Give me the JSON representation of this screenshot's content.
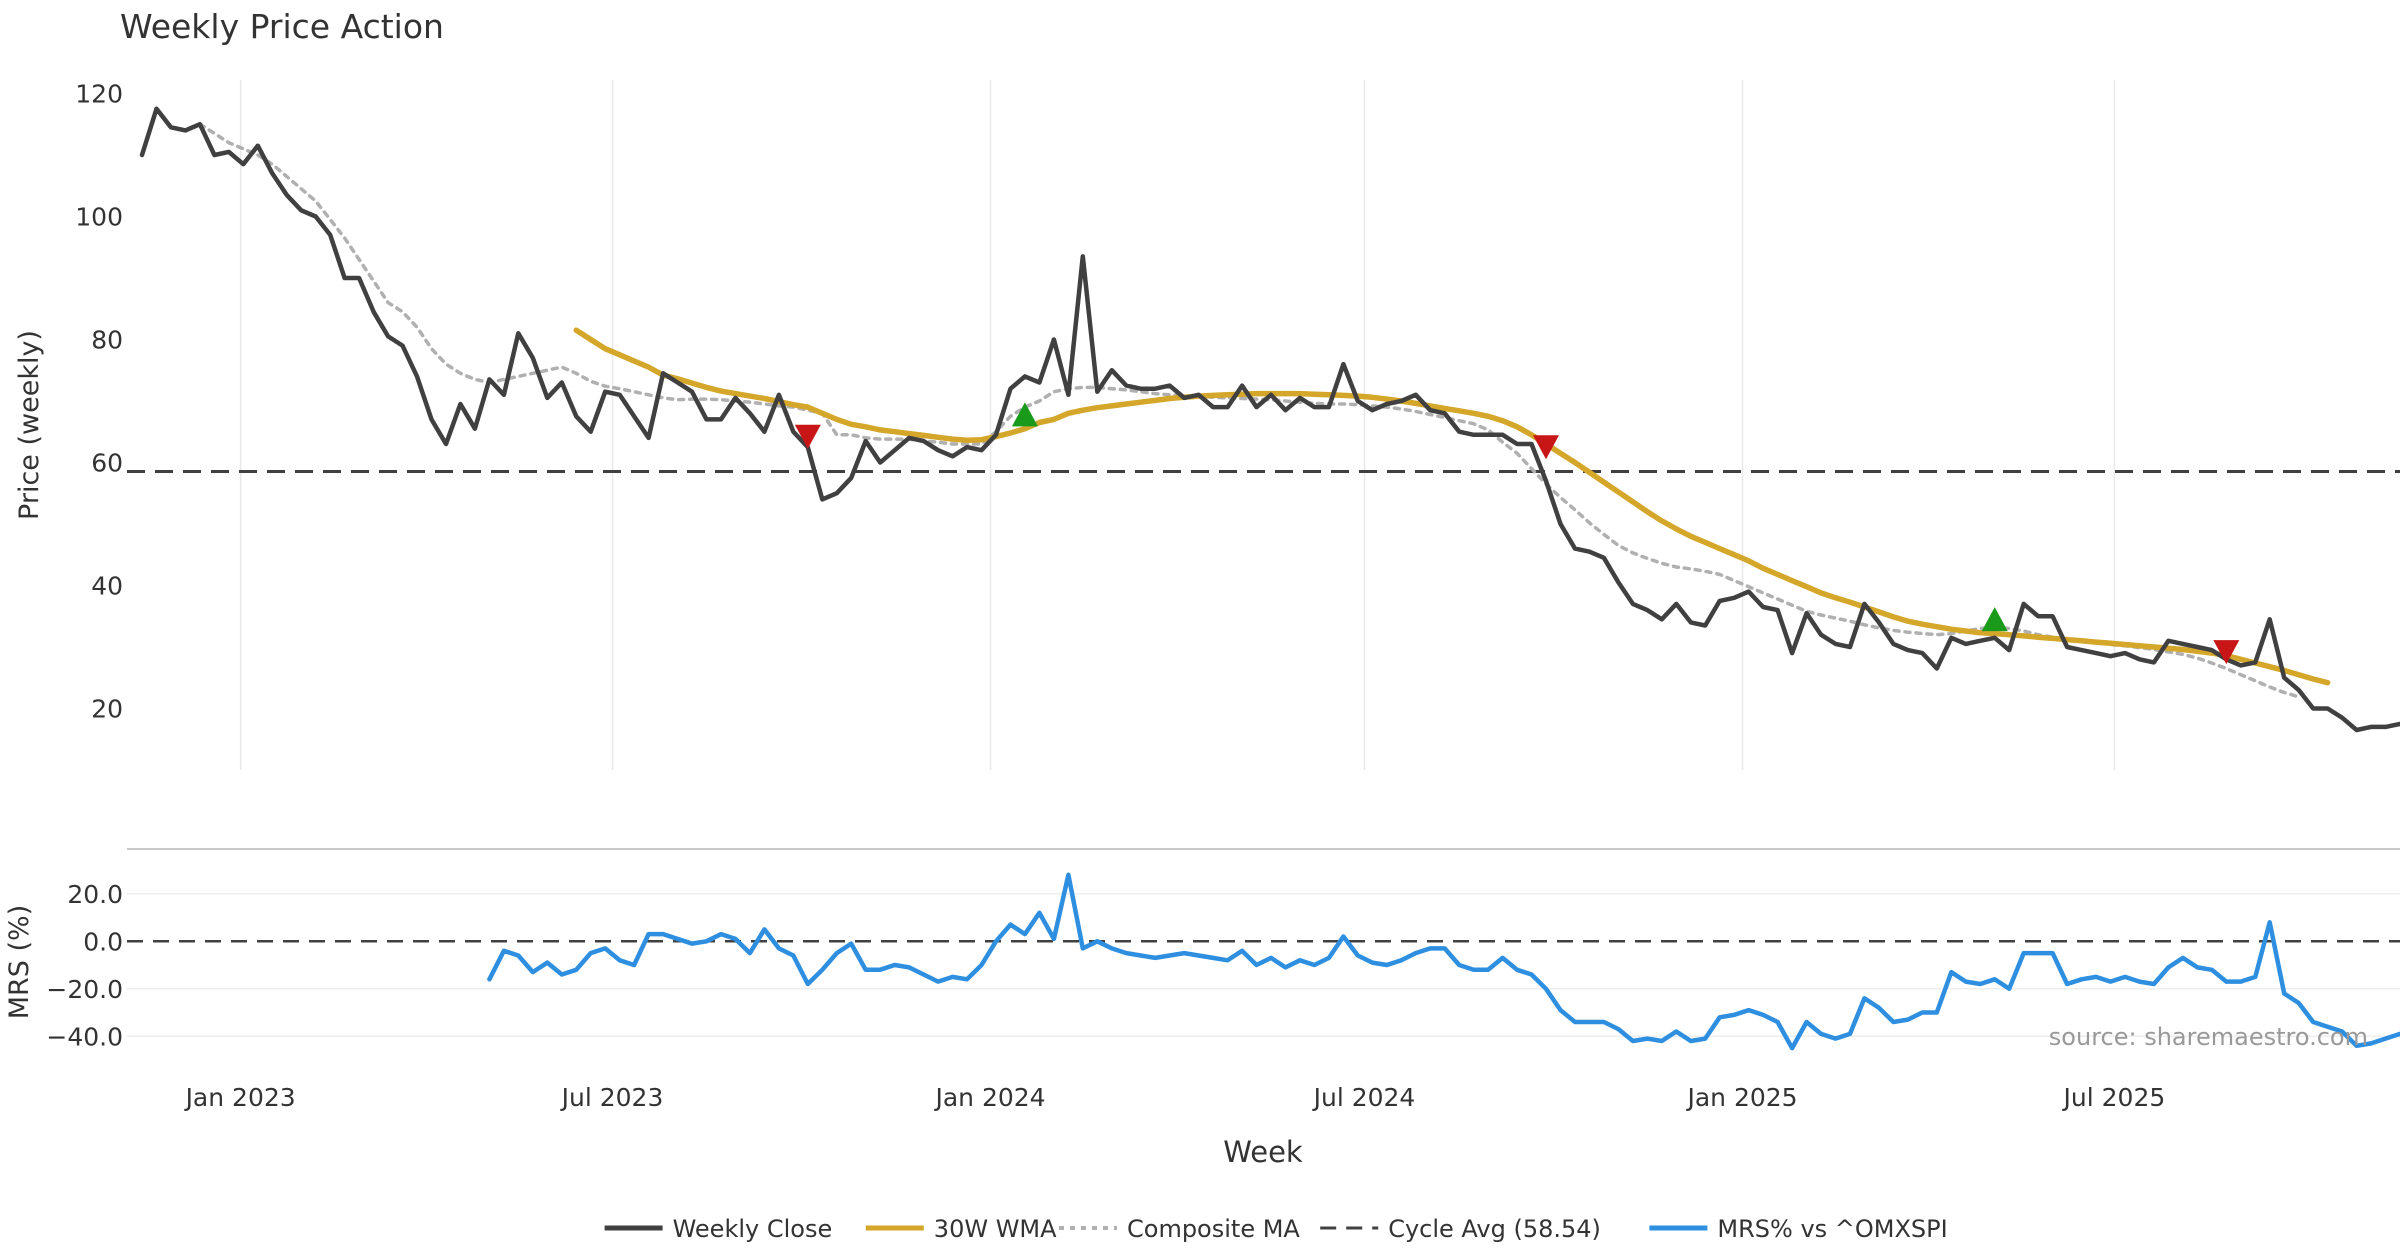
{
  "chart_data": [
    {
      "panel": "price",
      "type": "line",
      "title": "Weekly Price Action",
      "ylabel": "Price (weekly)",
      "xlabel": "Week",
      "ylim": [
        10,
        123
      ],
      "yticks": [
        20,
        40,
        60,
        80,
        100,
        120
      ],
      "ytick_labels": [
        "20",
        "40",
        "60",
        "80",
        "100",
        "120"
      ],
      "x_start": "2022-11-14",
      "x_end": "2025-11-17",
      "xticks": [
        {
          "label": "Jan 2023",
          "date": "2023-01-01"
        },
        {
          "label": "Jul 2023",
          "date": "2023-07-01"
        },
        {
          "label": "Jan 2024",
          "date": "2024-01-01"
        },
        {
          "label": "Jul 2024",
          "date": "2024-07-01"
        },
        {
          "label": "Jan 2025",
          "date": "2025-01-01"
        },
        {
          "label": "Jul 2025",
          "date": "2025-07-01"
        }
      ],
      "grid": "vertical",
      "reference_line": {
        "name": "Cycle Avg (58.54)",
        "value": 58.54
      },
      "series": [
        {
          "name": "Weekly Close",
          "color": "#404040",
          "style": "solid",
          "start_index": 0,
          "values": [
            110,
            117.5,
            114.5,
            114,
            115,
            110,
            110.5,
            108.5,
            111.5,
            107,
            103.5,
            101,
            100,
            97,
            90,
            90,
            84.5,
            80.5,
            79,
            74,
            67,
            63,
            69.5,
            65.5,
            73.5,
            71,
            81,
            77,
            70.5,
            73,
            67.5,
            65,
            71.5,
            71,
            67.5,
            64,
            74.5,
            73,
            71.5,
            67,
            67,
            70.5,
            68,
            65,
            71,
            65,
            62.5,
            54,
            55,
            57.5,
            63.5,
            60,
            62,
            64,
            63.5,
            62,
            61,
            62.5,
            62,
            64.5,
            72,
            74,
            73,
            80,
            71,
            93.5,
            71.5,
            75,
            72.5,
            72,
            72,
            72.5,
            70.5,
            71,
            69,
            69,
            72.5,
            69,
            71,
            68.5,
            70.5,
            69,
            69,
            76,
            70,
            68.5,
            69.5,
            70,
            71,
            68.5,
            68,
            65,
            64.5,
            64.5,
            64.5,
            63,
            63,
            57,
            50,
            46,
            45.5,
            44.5,
            40.5,
            37,
            36,
            34.5,
            37,
            34,
            33.5,
            37.5,
            38,
            39,
            36.5,
            36,
            29,
            35.5,
            32,
            30.5,
            30,
            37,
            34,
            30.5,
            29.5,
            29,
            26.5,
            31.5,
            30.5,
            31,
            31.5,
            29.5,
            37,
            35,
            35,
            30,
            29.5,
            29,
            28.5,
            29,
            28,
            27.5,
            31,
            30.5,
            30,
            29.5,
            28,
            27,
            27.5,
            34.5,
            25,
            23,
            20,
            20,
            18.5,
            16.5,
            17,
            17,
            17.5
          ]
        },
        {
          "name": "30W WMA",
          "color": "#D4A62A",
          "style": "solid",
          "start_index": 30,
          "values": [
            81.5,
            80,
            78.5,
            77.5,
            76.5,
            75.5,
            74.2,
            73.6,
            72.9,
            72.2,
            71.6,
            71.2,
            70.8,
            70.4,
            69.9,
            69.4,
            69,
            68,
            67,
            66.2,
            65.8,
            65.3,
            65,
            64.7,
            64.4,
            64.1,
            63.8,
            63.6,
            63.7,
            64.2,
            64.8,
            65.5,
            66.5,
            67,
            68,
            68.5,
            68.9,
            69.2,
            69.5,
            69.8,
            70.1,
            70.4,
            70.6,
            70.8,
            70.9,
            71,
            71.1,
            71.2,
            71.2,
            71.2,
            71.2,
            71.1,
            71,
            70.9,
            70.8,
            70.6,
            70.3,
            70,
            69.6,
            69.2,
            68.8,
            68.4,
            68,
            67.5,
            66.8,
            65.8,
            64.5,
            63,
            61.5,
            60,
            58.4,
            56.8,
            55.2,
            53.6,
            52,
            50.5,
            49.2,
            48,
            47,
            46,
            45,
            44,
            42.8,
            41.8,
            40.8,
            39.8,
            38.8,
            38,
            37.3,
            36.5,
            35.7,
            34.9,
            34.2,
            33.7,
            33.3,
            32.9,
            32.6,
            32.3,
            32.2,
            32,
            31.8,
            31.6,
            31.4,
            31.2,
            31,
            30.8,
            30.6,
            30.4,
            30.2,
            30,
            29.8,
            29.6,
            29.3,
            29,
            28.6,
            28,
            27.4,
            26.8,
            26.2,
            25.5,
            24.8,
            24.2
          ]
        },
        {
          "name": "Composite MA",
          "color": "#B0B0B0",
          "style": "dotted",
          "start_index": 4,
          "values": [
            115,
            113.5,
            112,
            111,
            110,
            108.5,
            106.5,
            104.5,
            102.5,
            99.5,
            96.5,
            93,
            89.5,
            86,
            84.5,
            82,
            78.5,
            76,
            74.5,
            73.5,
            73,
            73.5,
            74,
            74.5,
            75,
            75.5,
            74.5,
            73.2,
            72.4,
            72,
            71.5,
            71,
            70.5,
            70.2,
            70.3,
            70.3,
            70.2,
            70,
            69.8,
            69.5,
            69.2,
            69,
            68.5,
            68,
            64.5,
            64.5,
            64,
            63.8,
            63.8,
            63.8,
            63.5,
            63.3,
            63,
            63,
            63,
            65,
            67.5,
            69,
            70,
            71.5,
            72,
            72.2,
            72.2,
            72,
            71.8,
            71.5,
            71.2,
            71,
            70.8,
            70.8,
            70.6,
            70.5,
            70.4,
            70.3,
            70.2,
            70,
            69.8,
            69.6,
            69.5,
            69.5,
            69.4,
            69.2,
            69,
            68.7,
            68.3,
            67.8,
            67.3,
            66.8,
            66.3,
            65.3,
            63.3,
            61.5,
            59,
            56.5,
            54.3,
            52.3,
            50.2,
            48.3,
            46.5,
            45.3,
            44.4,
            43.6,
            43,
            42.7,
            42.3,
            41.8,
            40.8,
            39.8,
            38.8,
            37.8,
            36.8,
            35.8,
            35.2,
            34.7,
            34.2,
            33.6,
            33.1,
            32.7,
            32.4,
            32.2,
            32,
            32.2,
            32.6,
            33,
            33.2,
            33,
            32.6,
            32,
            31.6,
            31.3,
            31,
            30.7,
            30.4,
            30.2,
            29.9,
            29.6,
            29.2,
            28.8,
            28.2,
            27.4,
            26.5,
            25.5,
            24.5,
            23.5,
            22.6,
            21.9
          ]
        }
      ],
      "markers": [
        {
          "type": "buy",
          "shape": "up-triangle",
          "color": "#1A9A1A",
          "index": 61,
          "value": 67.5
        },
        {
          "type": "buy",
          "shape": "up-triangle",
          "color": "#1A9A1A",
          "index": 128,
          "value": 34.2
        },
        {
          "type": "sell",
          "shape": "down-triangle",
          "color": "#C81515",
          "index": 46,
          "value": 64.5
        },
        {
          "type": "sell",
          "shape": "down-triangle",
          "color": "#C81515",
          "index": 97,
          "value": 62.8
        },
        {
          "type": "sell",
          "shape": "down-triangle",
          "color": "#C81515",
          "index": 144,
          "value": 29.5
        }
      ]
    },
    {
      "panel": "mrs",
      "type": "line",
      "ylabel": "MRS (%)",
      "ylim": [
        -50,
        30
      ],
      "yticks": [
        -40,
        -20,
        0,
        20
      ],
      "ytick_labels": [
        "−40.0",
        "−20.0",
        "0.0",
        "20.0"
      ],
      "reference_line": {
        "value": 0
      },
      "series": [
        {
          "name": "MRS% vs ^OMXSPI",
          "color": "#2E8FE0",
          "style": "solid",
          "start_index": 24,
          "values": [
            -16,
            -4,
            -6,
            -13,
            -9,
            -14,
            -12,
            -5,
            -3,
            -8,
            -10,
            3,
            3,
            1,
            -1,
            0,
            3,
            1,
            -5,
            5,
            -3,
            -6,
            -18,
            -12,
            -5,
            -1,
            -12,
            -12,
            -10,
            -11,
            -14,
            -17,
            -15,
            -16,
            -10,
            0,
            7,
            3,
            12,
            1,
            28,
            -3,
            0,
            -3,
            -5,
            -6,
            -7,
            -6,
            -5,
            -6,
            -7,
            -8,
            -4,
            -10,
            -7,
            -11,
            -8,
            -10,
            -7,
            2,
            -6,
            -9,
            -10,
            -8,
            -5,
            -3,
            -3,
            -10,
            -12,
            -12,
            -7,
            -12,
            -14,
            -20,
            -29,
            -34,
            -34,
            -34,
            -37,
            -42,
            -41,
            -42,
            -38,
            -42,
            -41,
            -32,
            -31,
            -29,
            -31,
            -34,
            -45,
            -34,
            -39,
            -41,
            -39,
            -24,
            -28,
            -34,
            -33,
            -30,
            -30,
            -13,
            -17,
            -18,
            -16,
            -20,
            -5,
            -5,
            -5,
            -18,
            -16,
            -15,
            -17,
            -15,
            -17,
            -18,
            -11,
            -7,
            -11,
            -12,
            -17,
            -17,
            -15,
            8,
            -22,
            -26,
            -34,
            -36,
            -38,
            -44,
            -43,
            -41,
            -39
          ]
        }
      ]
    }
  ],
  "legend": {
    "placement": "bottom",
    "items": [
      {
        "label": "Weekly Close",
        "color": "#404040",
        "style": "solid"
      },
      {
        "label": "30W WMA",
        "color": "#D4A62A",
        "style": "solid"
      },
      {
        "label": "Composite MA",
        "color": "#B0B0B0",
        "style": "dotted"
      },
      {
        "label": "Cycle Avg (58.54)",
        "color": "#404040",
        "style": "dashed"
      },
      {
        "label": "MRS% vs ^OMXSPI",
        "color": "#2E8FE0",
        "style": "solid"
      }
    ]
  },
  "annotation": {
    "source": "source: sharemaestro.com"
  },
  "colors": {
    "axis_text": "#333333",
    "grid": "#E8E8E8",
    "reference": "#404040",
    "watermark": "#999999"
  }
}
